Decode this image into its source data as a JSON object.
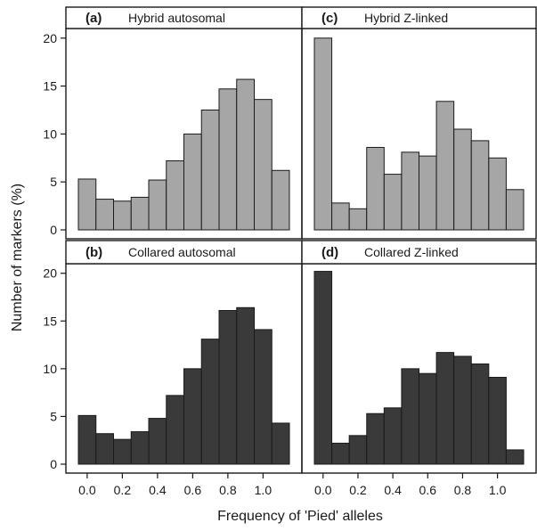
{
  "figure": {
    "ylabel": "Number of markers (%)",
    "xlabel": "Frequency of 'Pied' alleles"
  },
  "chart_data": [
    {
      "type": "bar",
      "panel": "(a)",
      "title": "Hybrid autosomal",
      "color": "#a6a6a6",
      "bin_width": 0.1,
      "x": [
        0.0,
        0.1,
        0.2,
        0.3,
        0.4,
        0.5,
        0.6,
        0.7,
        0.8,
        0.9,
        1.0
      ],
      "values": [
        5.3,
        3.2,
        3.0,
        3.4,
        5.2,
        7.2,
        10.0,
        12.5,
        14.7,
        15.7,
        13.6
      ],
      "last_bar": {
        "x": 1.0,
        "value": 6.2
      },
      "ylim": [
        0,
        21
      ],
      "yticks": [
        0,
        5,
        10,
        15,
        20
      ],
      "xlim": [
        -0.08,
        1.08
      ],
      "xticks": [
        "0.0",
        "0.2",
        "0.4",
        "0.6",
        "0.8",
        "1.0"
      ],
      "grid": false
    },
    {
      "type": "bar",
      "panel": "(b)",
      "title": "Collared autosomal",
      "color": "#3a3a3a",
      "values": [
        5.1,
        3.2,
        2.6,
        3.4,
        4.8,
        7.2,
        10.0,
        13.1,
        16.1,
        16.4,
        14.1,
        4.3
      ],
      "ylim": [
        0,
        21
      ],
      "yticks": [
        0,
        5,
        10,
        15,
        20
      ],
      "xticks": [
        "0.0",
        "0.2",
        "0.4",
        "0.6",
        "0.8",
        "1.0"
      ],
      "grid": false
    },
    {
      "type": "bar",
      "panel": "(c)",
      "title": "Hybrid Z-linked",
      "color": "#a6a6a6",
      "values": [
        20.0,
        2.8,
        2.2,
        8.6,
        5.8,
        8.1,
        7.7,
        13.4,
        10.5,
        9.3,
        7.5,
        4.2
      ],
      "ylim": [
        0,
        21
      ],
      "xticks": [
        "0.0",
        "0.2",
        "0.4",
        "0.6",
        "0.8",
        "1.0"
      ],
      "grid": false
    },
    {
      "type": "bar",
      "panel": "(d)",
      "title": "Collared Z-linked",
      "color": "#3a3a3a",
      "values": [
        20.2,
        2.2,
        3.0,
        5.3,
        5.9,
        10.0,
        9.5,
        11.7,
        11.3,
        10.5,
        9.1,
        1.5
      ],
      "ylim": [
        0,
        21
      ],
      "xticks": [
        "0.0",
        "0.2",
        "0.4",
        "0.6",
        "0.8",
        "1.0"
      ],
      "grid": false
    }
  ]
}
